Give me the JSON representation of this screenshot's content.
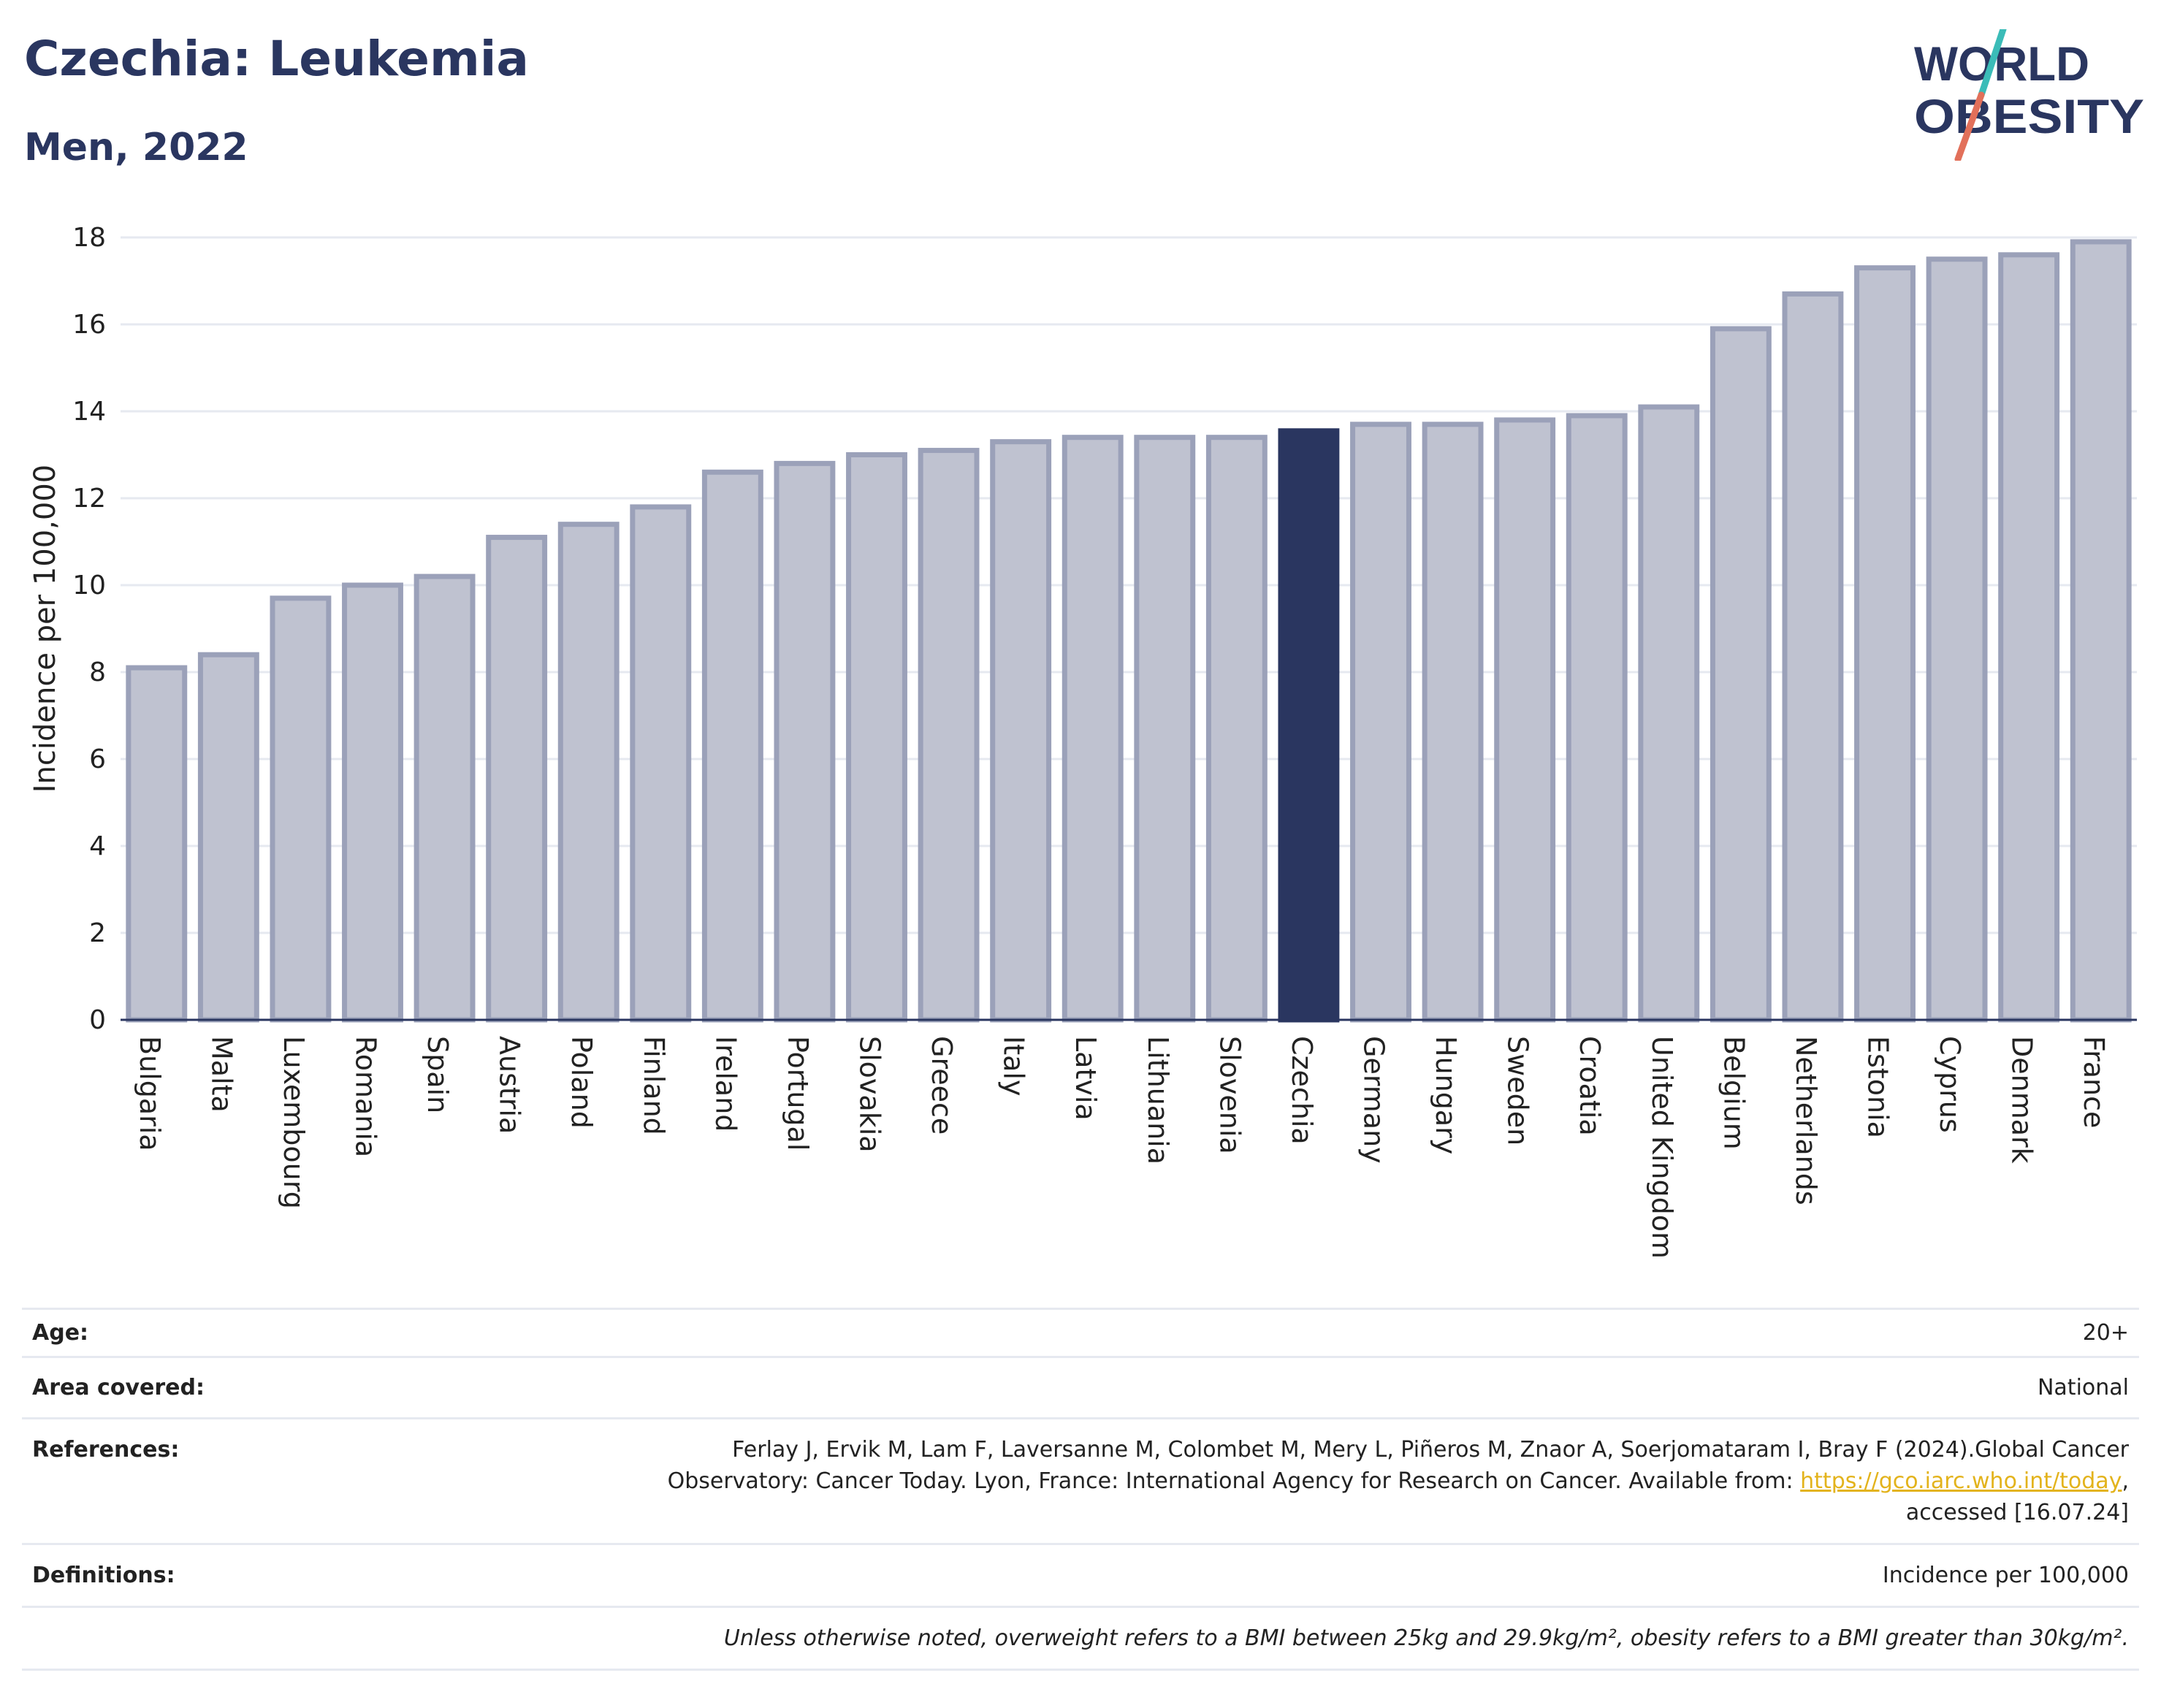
{
  "header": {
    "title": "Czechia: Leukemia",
    "subtitle": "Men, 2022"
  },
  "logo": {
    "line1": "WORLD",
    "line2": "OBESITY",
    "colors": {
      "text": "#2a3660",
      "slash_top": "#3bbcb8",
      "slash_bottom": "#e2705a"
    }
  },
  "chart_data": {
    "type": "bar",
    "ylabel": "Incidence per 100,000",
    "xlabel": "",
    "ylim": [
      0,
      18
    ],
    "yticks": [
      0,
      2,
      4,
      6,
      8,
      10,
      12,
      14,
      16,
      18
    ],
    "grid": true,
    "highlight": "Czechia",
    "colors": {
      "bar": "#bfc2d0",
      "bar_border": "#9ba1b9",
      "highlight": "#2a3660",
      "grid": "#e6e9f0",
      "axis": "#2a3660"
    },
    "categories": [
      "Bulgaria",
      "Malta",
      "Luxembourg",
      "Romania",
      "Spain",
      "Austria",
      "Poland",
      "Finland",
      "Ireland",
      "Portugal",
      "Slovakia",
      "Greece",
      "Italy",
      "Latvia",
      "Lithuania",
      "Slovenia",
      "Czechia",
      "Germany",
      "Hungary",
      "Sweden",
      "Croatia",
      "United Kingdom",
      "Belgium",
      "Netherlands",
      "Estonia",
      "Cyprus",
      "Denmark",
      "France"
    ],
    "values": [
      8.1,
      8.4,
      9.7,
      10.0,
      10.2,
      11.1,
      11.4,
      11.8,
      12.6,
      12.8,
      13.0,
      13.1,
      13.3,
      13.4,
      13.4,
      13.4,
      13.55,
      13.7,
      13.7,
      13.8,
      13.9,
      14.1,
      15.9,
      16.7,
      17.3,
      17.5,
      17.6,
      17.9
    ]
  },
  "info": {
    "age_label": "Age:",
    "age_value": "20+",
    "area_label": "Area covered:",
    "area_value": "National",
    "references_label": "References:",
    "references_line1": "Ferlay J, Ervik M, Lam F, Laversanne M, Colombet M, Mery L, Piñeros M, Znaor A, Soerjomataram I, Bray F (2024).Global Cancer",
    "references_line2_pre": "Observatory: Cancer Today. Lyon, France: International Agency for Research on Cancer. Available from: ",
    "references_link": "https://gco.iarc.who.int/today",
    "references_line2_post": ",",
    "references_line3": "accessed [16.07.24]",
    "definitions_label": "Definitions:",
    "definitions_value": "Incidence per 100,000",
    "note": "Unless otherwise noted, overweight refers to a BMI between 25kg and 29.9kg/m², obesity refers to a BMI greater than 30kg/m²."
  }
}
